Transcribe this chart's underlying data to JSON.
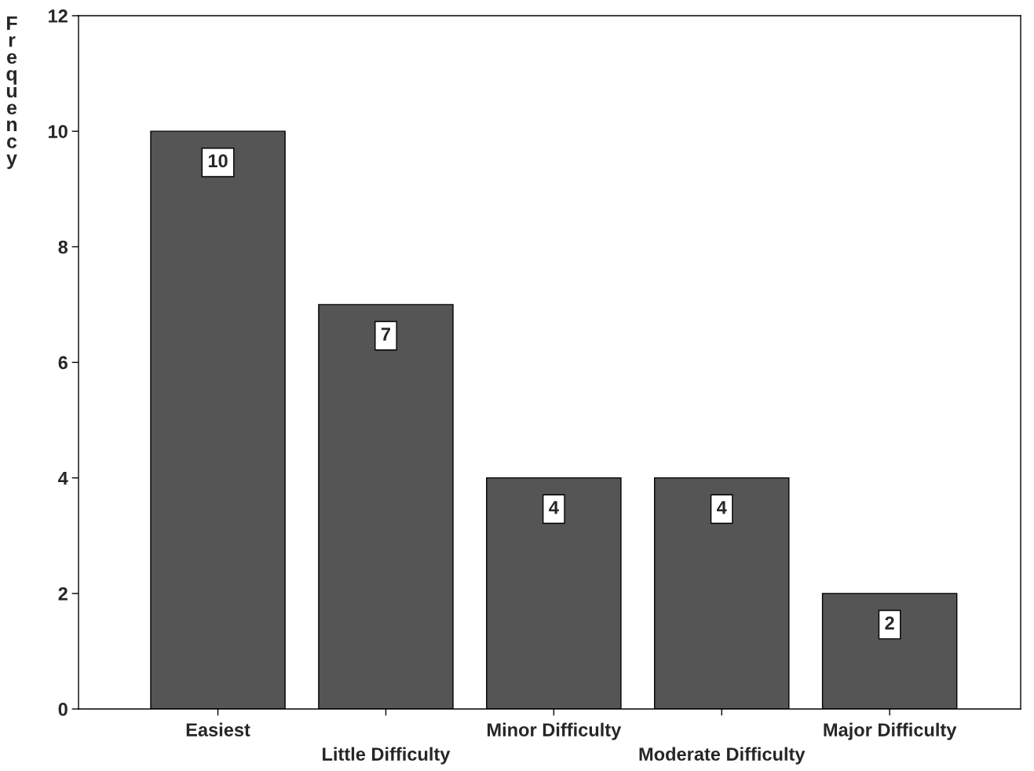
{
  "chart_data": {
    "type": "bar",
    "ylabel": "Frequency",
    "categories": [
      "Easiest",
      "Little Difficulty",
      "Minor Difficulty",
      "Moderate Difficulty",
      "Major Difficulty"
    ],
    "values": [
      10,
      7,
      4,
      4,
      2
    ],
    "color": "#555555",
    "ylim": [
      0,
      12
    ],
    "yticks": [
      0,
      2,
      4,
      6,
      8,
      10,
      12
    ],
    "grid": false,
    "data_labels": true
  }
}
